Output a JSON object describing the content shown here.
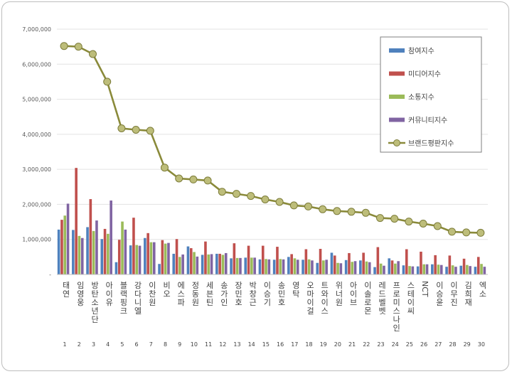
{
  "chart_data": {
    "type": "bar",
    "ylim": [
      0,
      7000000
    ],
    "y_ticks": [
      "-",
      "1,000,000",
      "2,000,000",
      "3,000,000",
      "4,000,000",
      "5,000,000",
      "6,000,000",
      "7,000,000"
    ],
    "grid": true,
    "legend_position": "top-right",
    "categories": [
      "태연",
      "임영웅",
      "방탄소년단",
      "아이유",
      "블랙핑크",
      "강다니엘",
      "이찬원",
      "비오",
      "에스파",
      "정동원",
      "세븐틴",
      "송가인",
      "장민호",
      "박창근",
      "이승기",
      "송민호",
      "영탁",
      "오마이걸",
      "트와이스",
      "위너원",
      "아이브",
      "이솔로몬",
      "레드벨벳",
      "프로미스나인",
      "스테이씨",
      "NCT",
      "이승윤",
      "이무진",
      "김희재",
      "엑소"
    ],
    "index_labels": [
      "1",
      "2",
      "3",
      "4",
      "5",
      "6",
      "7",
      "8",
      "9",
      "10",
      "11",
      "12",
      "13",
      "14",
      "15",
      "16",
      "17",
      "18",
      "19",
      "20",
      "21",
      "22",
      "23",
      "24",
      "25",
      "26",
      "27",
      "28",
      "29",
      "30"
    ],
    "series": [
      {
        "name": "참여지수",
        "color": "#4f81bd",
        "values": [
          1280000,
          1270000,
          1350000,
          1010000,
          350000,
          830000,
          1040000,
          300000,
          590000,
          800000,
          560000,
          590000,
          460000,
          480000,
          430000,
          420000,
          500000,
          420000,
          330000,
          620000,
          410000,
          400000,
          210000,
          460000,
          260000,
          230000,
          290000,
          220000,
          250000,
          220000
        ]
      },
      {
        "name": "미디어지수",
        "color": "#c0504d",
        "values": [
          1560000,
          3040000,
          2150000,
          1300000,
          990000,
          1620000,
          1180000,
          980000,
          1010000,
          750000,
          940000,
          590000,
          890000,
          820000,
          820000,
          790000,
          580000,
          720000,
          730000,
          540000,
          610000,
          620000,
          780000,
          400000,
          720000,
          650000,
          550000,
          540000,
          450000,
          500000
        ]
      },
      {
        "name": "소통지수",
        "color": "#9bbb59",
        "values": [
          1680000,
          1100000,
          1240000,
          1160000,
          1510000,
          840000,
          920000,
          880000,
          500000,
          640000,
          570000,
          560000,
          470000,
          480000,
          440000,
          440000,
          460000,
          430000,
          400000,
          330000,
          360000,
          370000,
          310000,
          310000,
          240000,
          290000,
          280000,
          260000,
          270000,
          300000
        ]
      },
      {
        "name": "커뮤니티지수",
        "color": "#8064a2",
        "values": [
          2020000,
          1040000,
          1540000,
          2110000,
          1280000,
          820000,
          920000,
          900000,
          570000,
          510000,
          580000,
          610000,
          470000,
          480000,
          430000,
          430000,
          420000,
          400000,
          420000,
          320000,
          380000,
          350000,
          250000,
          380000,
          230000,
          290000,
          270000,
          220000,
          240000,
          220000
        ]
      }
    ],
    "line_series": {
      "name": "브랜드평판지수",
      "color": "#8a8a3a",
      "marker_color": "#bdbd7a",
      "values": [
        6520000,
        6500000,
        6290000,
        5500000,
        4170000,
        4130000,
        4100000,
        3050000,
        2740000,
        2710000,
        2680000,
        2360000,
        2300000,
        2240000,
        2140000,
        2070000,
        1970000,
        1940000,
        1860000,
        1810000,
        1790000,
        1760000,
        1610000,
        1590000,
        1510000,
        1450000,
        1380000,
        1220000,
        1200000,
        1190000
      ]
    }
  }
}
